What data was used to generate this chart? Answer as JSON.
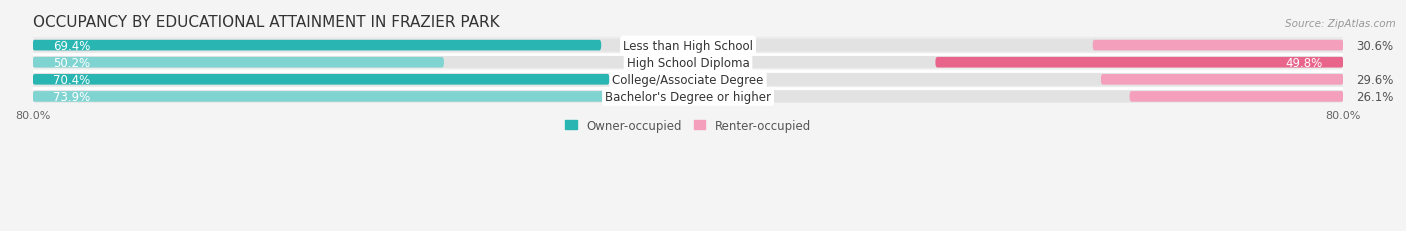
{
  "title": "OCCUPANCY BY EDUCATIONAL ATTAINMENT IN FRAZIER PARK",
  "source": "Source: ZipAtlas.com",
  "categories": [
    "Less than High School",
    "High School Diploma",
    "College/Associate Degree",
    "Bachelor's Degree or higher"
  ],
  "owner_values": [
    69.4,
    50.2,
    70.4,
    73.9
  ],
  "renter_values": [
    30.6,
    49.8,
    29.6,
    26.1
  ],
  "owner_color": "#29b5b2",
  "owner_color_light": "#7fd4d2",
  "renter_color_dark": "#e8648a",
  "renter_color_light": "#f4a0bc",
  "bar_height": 0.62,
  "xlim_left": -80.0,
  "xlim_right": 80.0,
  "background_color": "#f4f4f4",
  "track_color": "#e2e2e2",
  "row_bg_even": "#ebebeb",
  "row_bg_odd": "#f4f4f4",
  "title_fontsize": 11,
  "label_fontsize": 8.5,
  "value_fontsize": 8.5,
  "tick_fontsize": 8,
  "legend_fontsize": 8.5
}
